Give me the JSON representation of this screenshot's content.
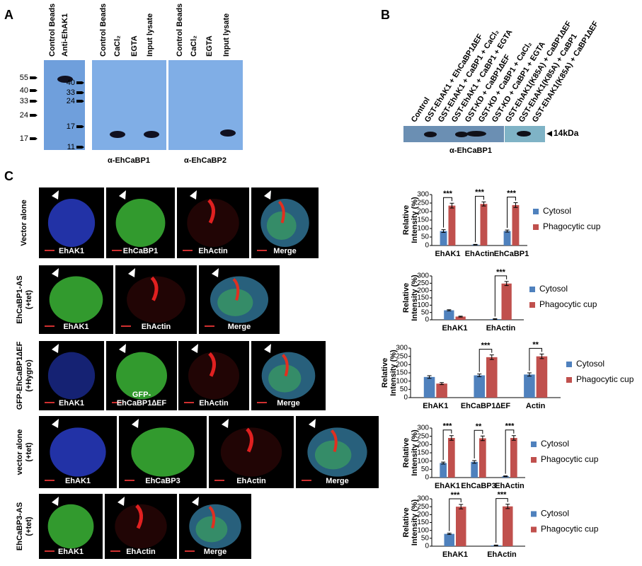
{
  "figure": {
    "a": {
      "letter": "A",
      "blot1_lanes": [
        "Control Beads",
        "Anti-EhAK1"
      ],
      "blot1_markers": [
        "55",
        "40",
        "33",
        "24",
        "17"
      ],
      "blot2_lanes": [
        "Control Beads",
        "CaCl₂",
        "EGTA",
        "Input lysate"
      ],
      "blot2_markers": [
        "40",
        "33",
        "24",
        "17",
        "11"
      ],
      "blot3_lanes": [
        "Control Beads",
        "CaCl₂",
        "EGTA",
        "Input lysate"
      ],
      "caption2": "α-EhCaBP1",
      "caption3": "α-EhCaBP2"
    },
    "b": {
      "letter": "B",
      "lanes": [
        "Control",
        "GST-EhAK1 + EhCaBP1∆EF",
        "GST-EhAK1 + CaBP1 + CaCl₂",
        "GST-EhAK1 + CaBP1 + EGTA",
        "GST-KD + CaBP1∆EF",
        "GST-KD + CaBP1 + CaCl₂",
        "GST-KD + CaBP1 + EGTA",
        "GST-EhAK1(K85A) + CaBP1∆EF",
        "GST-EhAK1(K85A) + CaBP1",
        "GST-EhAK1(K85A) + CaBP1∆EF"
      ],
      "marker": "14kDa",
      "caption": "α-EhCaBP1"
    },
    "c": {
      "letter": "C",
      "rows": [
        {
          "label_lines": [
            "Vector alone"
          ],
          "images": [
            "EhAK1",
            "EhCaBP1",
            "EhActin",
            "Merge"
          ]
        },
        {
          "label_lines": [
            "EhCaBP1-AS",
            "(+tet)"
          ],
          "images": [
            "EhAK1",
            "EhActin",
            "Merge"
          ]
        },
        {
          "label_lines": [
            "GFP-EhCaBP1∆EF",
            "(+Hygro)"
          ],
          "images": [
            "EhAK1",
            "GFP-\nEhCaBP1∆EF",
            "EhActin",
            "Merge"
          ]
        },
        {
          "label_lines": [
            "vector alone",
            "(+tet)"
          ],
          "images": [
            "EhAK1",
            "EhCaBP3",
            "EhActin",
            "Merge"
          ]
        },
        {
          "label_lines": [
            "EhCaBP3-AS",
            "(+tet)"
          ],
          "images": [
            "EhAK1",
            "EhActin",
            "Merge"
          ]
        }
      ]
    }
  },
  "chart_data": [
    {
      "type": "bar",
      "y_label_lines": [
        "Relative",
        "Intensity (%)"
      ],
      "categories": [
        "EhAK1",
        "EhActin",
        "EhCaBP1"
      ],
      "series": [
        {
          "name": "Cytosol",
          "color": "#4f81bd",
          "values": [
            85,
            5,
            85
          ],
          "errors": [
            8,
            2,
            6
          ]
        },
        {
          "name": "Phagocytic cup",
          "color": "#c0504d",
          "values": [
            235,
            245,
            238
          ],
          "errors": [
            14,
            12,
            14
          ]
        }
      ],
      "significance": [
        "***",
        "***",
        "***"
      ],
      "ylim": [
        0,
        300
      ],
      "yticks": [
        0,
        50,
        100,
        150,
        200,
        250,
        300
      ]
    },
    {
      "type": "bar",
      "y_label_lines": [
        "Relative",
        "Intensity (%)"
      ],
      "categories": [
        "EhAK1",
        "EhActin"
      ],
      "series": [
        {
          "name": "Cytosol",
          "color": "#4f81bd",
          "values": [
            65,
            5
          ],
          "errors": [
            4,
            2
          ]
        },
        {
          "name": "Phagocytic cup",
          "color": "#c0504d",
          "values": [
            22,
            248
          ],
          "errors": [
            3,
            14
          ]
        }
      ],
      "significance": [
        null,
        "***"
      ],
      "ylim": [
        0,
        300
      ],
      "yticks": [
        0,
        50,
        100,
        150,
        200,
        250,
        300
      ]
    },
    {
      "type": "bar",
      "y_label_lines": [
        "Relative",
        "Intensity (%)"
      ],
      "categories": [
        "EhAK1",
        "EhCaBP1∆EF",
        "Actin"
      ],
      "series": [
        {
          "name": "Cytosol",
          "color": "#4f81bd",
          "values": [
            125,
            135,
            140
          ],
          "errors": [
            8,
            8,
            10
          ]
        },
        {
          "name": "Phagocytic cup",
          "color": "#c0504d",
          "values": [
            85,
            245,
            250
          ],
          "errors": [
            6,
            14,
            14
          ]
        }
      ],
      "significance": [
        null,
        "***",
        "**"
      ],
      "ylim": [
        0,
        300
      ],
      "yticks": [
        0,
        50,
        100,
        150,
        200,
        250,
        300
      ]
    },
    {
      "type": "bar",
      "y_label_lines": [
        "Relative",
        "Intensity (%)"
      ],
      "categories": [
        "EhAK1",
        "EhCaBP3",
        "EhActin"
      ],
      "series": [
        {
          "name": "Cytosol",
          "color": "#4f81bd",
          "values": [
            88,
            95,
            8
          ],
          "errors": [
            6,
            8,
            2
          ]
        },
        {
          "name": "Phagocytic cup",
          "color": "#c0504d",
          "values": [
            240,
            238,
            240
          ],
          "errors": [
            14,
            14,
            14
          ]
        }
      ],
      "significance": [
        "***",
        "**",
        "***"
      ],
      "ylim": [
        0,
        300
      ],
      "yticks": [
        0,
        50,
        100,
        150,
        200,
        250,
        300
      ]
    },
    {
      "type": "bar",
      "y_label_lines": [
        "Relative",
        "Intensity (%)"
      ],
      "categories": [
        "EhAK1",
        "EhActin"
      ],
      "series": [
        {
          "name": "Cytosol",
          "color": "#4f81bd",
          "values": [
            78,
            5
          ],
          "errors": [
            4,
            2
          ]
        },
        {
          "name": "Phagocytic cup",
          "color": "#c0504d",
          "values": [
            250,
            252
          ],
          "errors": [
            14,
            14
          ]
        }
      ],
      "significance": [
        "***",
        "***"
      ],
      "ylim": [
        0,
        300
      ],
      "yticks": [
        0,
        50,
        100,
        150,
        200,
        250,
        300
      ]
    }
  ]
}
